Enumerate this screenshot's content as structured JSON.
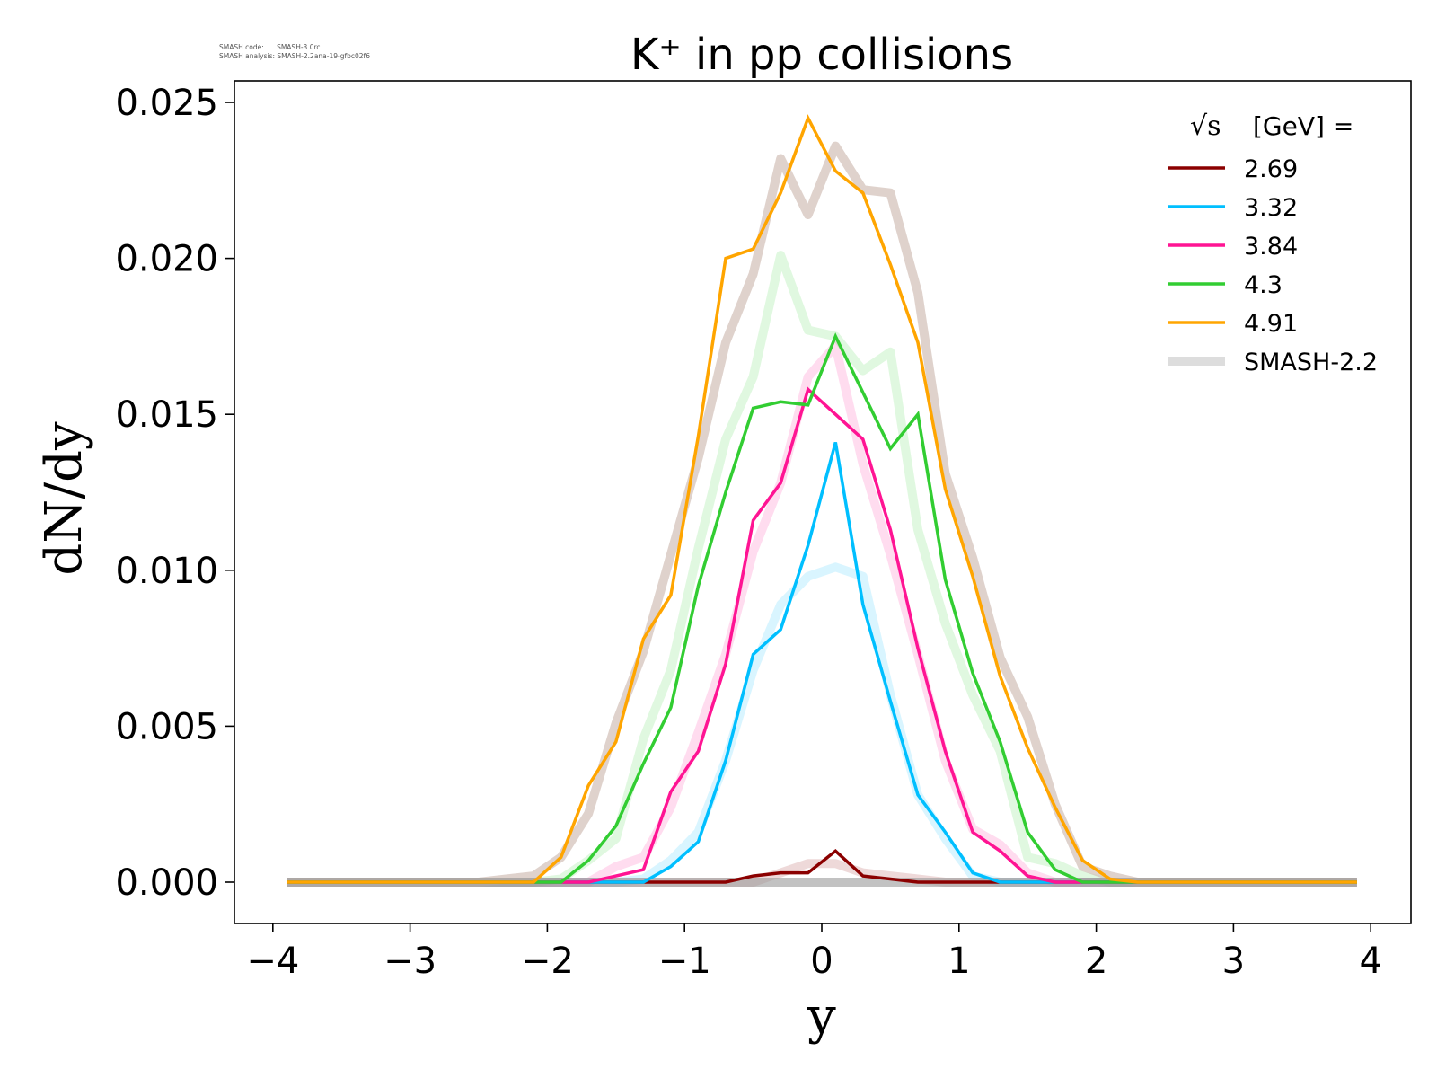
{
  "meta": {
    "code_line": "SMASH code:      SMASH-3.0rc",
    "analysis_line": "SMASH analysis: SMASH-2.2ana-19-gfbc02f6"
  },
  "chart_data": {
    "type": "line",
    "title": "K⁺ in pp collisions",
    "xlabel": "y",
    "ylabel": "dN/dy",
    "xlim": [
      -4.3,
      4.3
    ],
    "ylim": [
      -0.0012,
      0.0257
    ],
    "xticks": [
      -4,
      -3,
      -2,
      -1,
      0,
      1,
      2,
      3,
      4
    ],
    "xtick_labels": [
      "−4",
      "−3",
      "−2",
      "−1",
      "0",
      "1",
      "2",
      "3",
      "4"
    ],
    "yticks": [
      0.0,
      0.005,
      0.01,
      0.015,
      0.02,
      0.025
    ],
    "ytick_labels": [
      "0.000",
      "0.005",
      "0.010",
      "0.015",
      "0.020",
      "0.025"
    ],
    "grid": false,
    "legend": {
      "title_prefix": "√s",
      "title_suffix": "[GeV] =",
      "placement": "top-right",
      "entries": [
        "2.69",
        "3.32",
        "3.84",
        "4.3",
        "4.91",
        "SMASH-2.2"
      ]
    },
    "x": [
      -3.9,
      -3.7,
      -3.5,
      -3.3,
      -3.1,
      -2.9,
      -2.7,
      -2.5,
      -2.3,
      -2.1,
      -1.9,
      -1.7,
      -1.5,
      -1.3,
      -1.1,
      -0.9,
      -0.7,
      -0.5,
      -0.3,
      -0.1,
      0.1,
      0.3,
      0.5,
      0.7,
      0.9,
      1.1,
      1.3,
      1.5,
      1.7,
      1.9,
      2.1,
      2.3,
      2.5,
      2.7,
      2.9,
      3.1,
      3.3,
      3.5,
      3.7,
      3.9
    ],
    "series": [
      {
        "name": "2.69",
        "color": "#8b0000",
        "values": [
          0,
          0,
          0,
          0,
          0,
          0,
          0,
          0,
          0,
          0,
          0,
          0,
          0,
          0,
          0,
          0,
          0,
          0.0002,
          0.0003,
          0.0003,
          0.001,
          0.0002,
          0.0001,
          0,
          0,
          0,
          0,
          0,
          0,
          0,
          0,
          0,
          0,
          0,
          0,
          0,
          0,
          0,
          0,
          0
        ]
      },
      {
        "name": "3.32",
        "color": "#00bfff",
        "values": [
          0,
          0,
          0,
          0,
          0,
          0,
          0,
          0,
          0,
          0,
          0,
          0,
          0,
          0,
          0.0005,
          0.0013,
          0.0039,
          0.0073,
          0.0081,
          0.0108,
          0.0141,
          0.0089,
          0.0058,
          0.0028,
          0.0016,
          0.0003,
          0,
          0,
          0,
          0,
          0,
          0,
          0,
          0,
          0,
          0,
          0,
          0,
          0,
          0
        ]
      },
      {
        "name": "3.84",
        "color": "#ff1493",
        "values": [
          0,
          0,
          0,
          0,
          0,
          0,
          0,
          0,
          0,
          0,
          0,
          0,
          0.0002,
          0.0004,
          0.0029,
          0.0042,
          0.007,
          0.0116,
          0.0128,
          0.0158,
          0.015,
          0.0142,
          0.0113,
          0.0075,
          0.0042,
          0.0016,
          0.001,
          0.0002,
          0,
          0,
          0,
          0,
          0,
          0,
          0,
          0,
          0,
          0,
          0,
          0
        ]
      },
      {
        "name": "4.3",
        "color": "#32cd32",
        "values": [
          0,
          0,
          0,
          0,
          0,
          0,
          0,
          0,
          0,
          0,
          0,
          0.0007,
          0.0018,
          0.0038,
          0.0056,
          0.0095,
          0.0125,
          0.0152,
          0.0154,
          0.0153,
          0.0175,
          0.0157,
          0.0139,
          0.015,
          0.0097,
          0.0067,
          0.0045,
          0.0016,
          0.0004,
          0,
          0,
          0,
          0,
          0,
          0,
          0,
          0,
          0,
          0,
          0
        ]
      },
      {
        "name": "4.91",
        "color": "#ffa500",
        "values": [
          0,
          0,
          0,
          0,
          0,
          0,
          0,
          0,
          0,
          0,
          0.0008,
          0.0031,
          0.0045,
          0.0078,
          0.0092,
          0.0143,
          0.02,
          0.0203,
          0.0221,
          0.0245,
          0.0228,
          0.0221,
          0.0198,
          0.0173,
          0.0126,
          0.0098,
          0.0066,
          0.0043,
          0.0024,
          0.0007,
          0.0001,
          0,
          0,
          0,
          0,
          0,
          0,
          0,
          0,
          0
        ]
      }
    ],
    "reference_series": [
      {
        "name": "SMASH-2.2 (2.69)",
        "color": "#8b0000",
        "values": [
          0,
          0,
          0,
          0,
          0,
          0,
          0,
          0,
          0,
          0,
          0,
          0,
          0,
          0,
          0,
          0,
          0,
          0,
          0.0003,
          0.0006,
          0.0006,
          0.0003,
          0.0002,
          0.0001,
          0,
          0,
          0,
          0,
          0,
          0,
          0,
          0,
          0,
          0,
          0,
          0,
          0,
          0,
          0,
          0
        ]
      },
      {
        "name": "SMASH-2.2 (3.32)",
        "color": "#00bfff",
        "values": [
          0,
          0,
          0,
          0,
          0,
          0,
          0,
          0,
          0,
          0,
          0,
          0,
          0,
          0.0001,
          0.0007,
          0.0016,
          0.0039,
          0.0068,
          0.0089,
          0.0098,
          0.0101,
          0.0098,
          0.006,
          0.0028,
          0.0014,
          0.0002,
          0,
          0,
          0,
          0,
          0,
          0,
          0,
          0,
          0,
          0,
          0,
          0,
          0,
          0
        ]
      },
      {
        "name": "SMASH-2.2 (3.84)",
        "color": "#ff1493",
        "values": [
          0,
          0,
          0,
          0,
          0,
          0,
          0,
          0,
          0,
          0,
          0,
          0,
          0.0005,
          0.0008,
          0.0024,
          0.0048,
          0.0073,
          0.0106,
          0.0128,
          0.0162,
          0.0172,
          0.0134,
          0.0105,
          0.0073,
          0.0039,
          0.0017,
          0.0012,
          0.0003,
          0,
          0,
          0,
          0,
          0,
          0,
          0,
          0,
          0,
          0,
          0,
          0
        ]
      },
      {
        "name": "SMASH-2.2 (4.3)",
        "color": "#32cd32",
        "values": [
          0,
          0,
          0,
          0,
          0,
          0,
          0,
          0,
          0,
          0,
          0.0001,
          0.0007,
          0.0014,
          0.0046,
          0.0068,
          0.0107,
          0.0142,
          0.0162,
          0.0201,
          0.0177,
          0.0175,
          0.0164,
          0.017,
          0.0113,
          0.0083,
          0.006,
          0.0042,
          0.0008,
          0.0006,
          0.0002,
          0,
          0,
          0,
          0,
          0,
          0,
          0,
          0,
          0,
          0
        ]
      },
      {
        "name": "SMASH-2.2 (4.91)",
        "color": "#d2bfb6",
        "values": [
          0,
          0,
          0,
          0,
          0,
          0,
          0,
          0,
          0.0001,
          0.0002,
          0.0008,
          0.0022,
          0.0051,
          0.0074,
          0.0105,
          0.0136,
          0.0173,
          0.0195,
          0.0232,
          0.0214,
          0.0236,
          0.0222,
          0.0221,
          0.0189,
          0.0131,
          0.0104,
          0.0072,
          0.0053,
          0.0025,
          0.0005,
          0.0002,
          0,
          0,
          0,
          0,
          0,
          0,
          0,
          0,
          0
        ]
      }
    ]
  }
}
